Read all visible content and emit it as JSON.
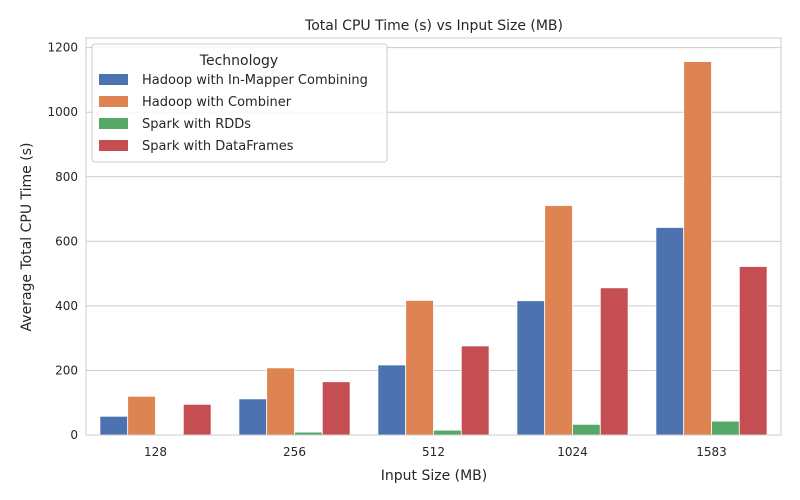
{
  "chart_data": {
    "type": "bar",
    "title": "Total CPU Time (s) vs Input Size (MB)",
    "xlabel": "Input Size (MB)",
    "ylabel": "Average Total CPU Time (s)",
    "categories": [
      "128",
      "256",
      "512",
      "1024",
      "1583"
    ],
    "ylim": [
      0,
      1230
    ],
    "yticks": [
      0,
      200,
      400,
      600,
      800,
      1000,
      1200
    ],
    "grid": "horizontal",
    "legend": {
      "title": "Technology",
      "placement": "top-left"
    },
    "series": [
      {
        "name": "Hadoop with In-Mapper Combining",
        "color": "#4c72b0",
        "values": [
          58,
          112,
          217,
          416,
          643
        ]
      },
      {
        "name": "Hadoop with Combiner",
        "color": "#dd8452",
        "values": [
          120,
          208,
          417,
          711,
          1157
        ]
      },
      {
        "name": "Spark with RDDs",
        "color": "#55a868",
        "values": [
          2,
          9,
          15,
          33,
          43
        ]
      },
      {
        "name": "Spark with DataFrames",
        "color": "#c44e52",
        "values": [
          95,
          165,
          276,
          456,
          522
        ]
      }
    ]
  }
}
